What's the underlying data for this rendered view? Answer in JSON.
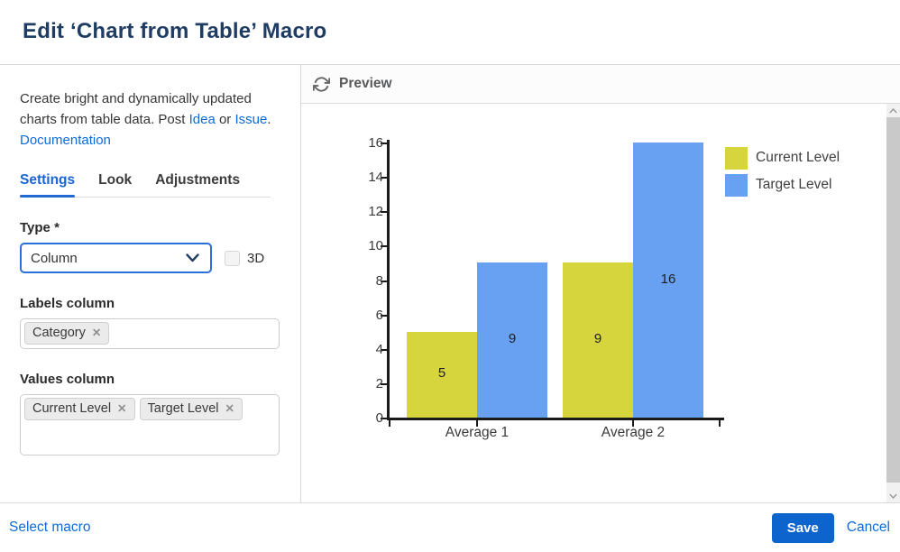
{
  "dialog": {
    "title": "Edit ‘Chart from Table’ Macro"
  },
  "sidebar": {
    "description": {
      "part1": "Create bright and dynamically updated charts from table data. Post ",
      "link_idea": "Idea",
      "part2": " or ",
      "link_issue": "Issue",
      "part3": ". ",
      "link_documentation": "Documentation"
    },
    "tabs": [
      {
        "label": "Settings",
        "active": true
      },
      {
        "label": "Look",
        "active": false
      },
      {
        "label": "Adjustments",
        "active": false
      }
    ],
    "type_field": {
      "label": "Type *",
      "value": "Column",
      "checkbox_label": "3D",
      "checkbox_checked": false
    },
    "labels_column": {
      "label": "Labels column",
      "tags": [
        "Category"
      ]
    },
    "values_column": {
      "label": "Values column",
      "tags": [
        "Current Level",
        "Target Level"
      ]
    }
  },
  "preview": {
    "title": "Preview"
  },
  "chart_data": {
    "type": "bar",
    "categories": [
      "Average 1",
      "Average 2"
    ],
    "series": [
      {
        "name": "Current Level",
        "color": "#d7d53e",
        "values": [
          5,
          9
        ]
      },
      {
        "name": "Target Level",
        "color": "#68a1f2",
        "values": [
          9,
          16
        ]
      }
    ],
    "title": "",
    "xlabel": "",
    "ylabel": "",
    "ylim": [
      0,
      16
    ],
    "ytick_step": 2,
    "grid": false,
    "data_labels": true,
    "legend_position": "right"
  },
  "footer": {
    "select_macro": "Select macro",
    "save": "Save",
    "cancel": "Cancel"
  },
  "icons": {
    "remove": "✕"
  },
  "colors": {
    "accent_link": "#0d6bd8",
    "save_button": "#0d64cd",
    "tab_active": "#1a65d3",
    "select_border": "#2b6fdb",
    "series_yellow": "#d7d53e",
    "series_blue": "#68a1f2",
    "axis": "#1a1a1a"
  }
}
